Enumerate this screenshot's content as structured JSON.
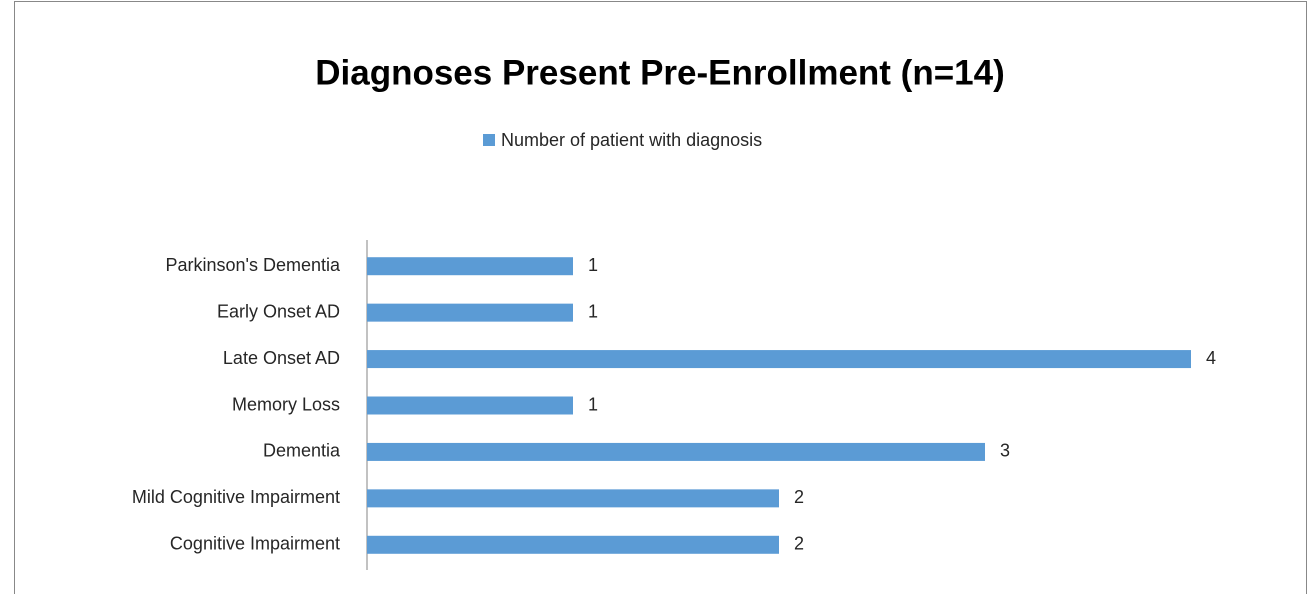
{
  "chart_data": {
    "type": "hbar",
    "title": "Diagnoses Present Pre-Enrollment (n=14)",
    "categories": [
      "Parkinson's Dementia",
      "Early Onset AD",
      "Late Onset AD",
      "Memory Loss",
      "Dementia",
      "Mild Cognitive Impairment",
      "Cognitive Impairment"
    ],
    "series": [
      {
        "name": "Number of patient with diagnosis",
        "color": "#5b9bd5",
        "values": [
          1,
          1,
          4,
          1,
          3,
          2,
          2
        ]
      }
    ],
    "xlim": [
      0,
      4.5
    ],
    "legend": "top",
    "data_labels": true
  }
}
